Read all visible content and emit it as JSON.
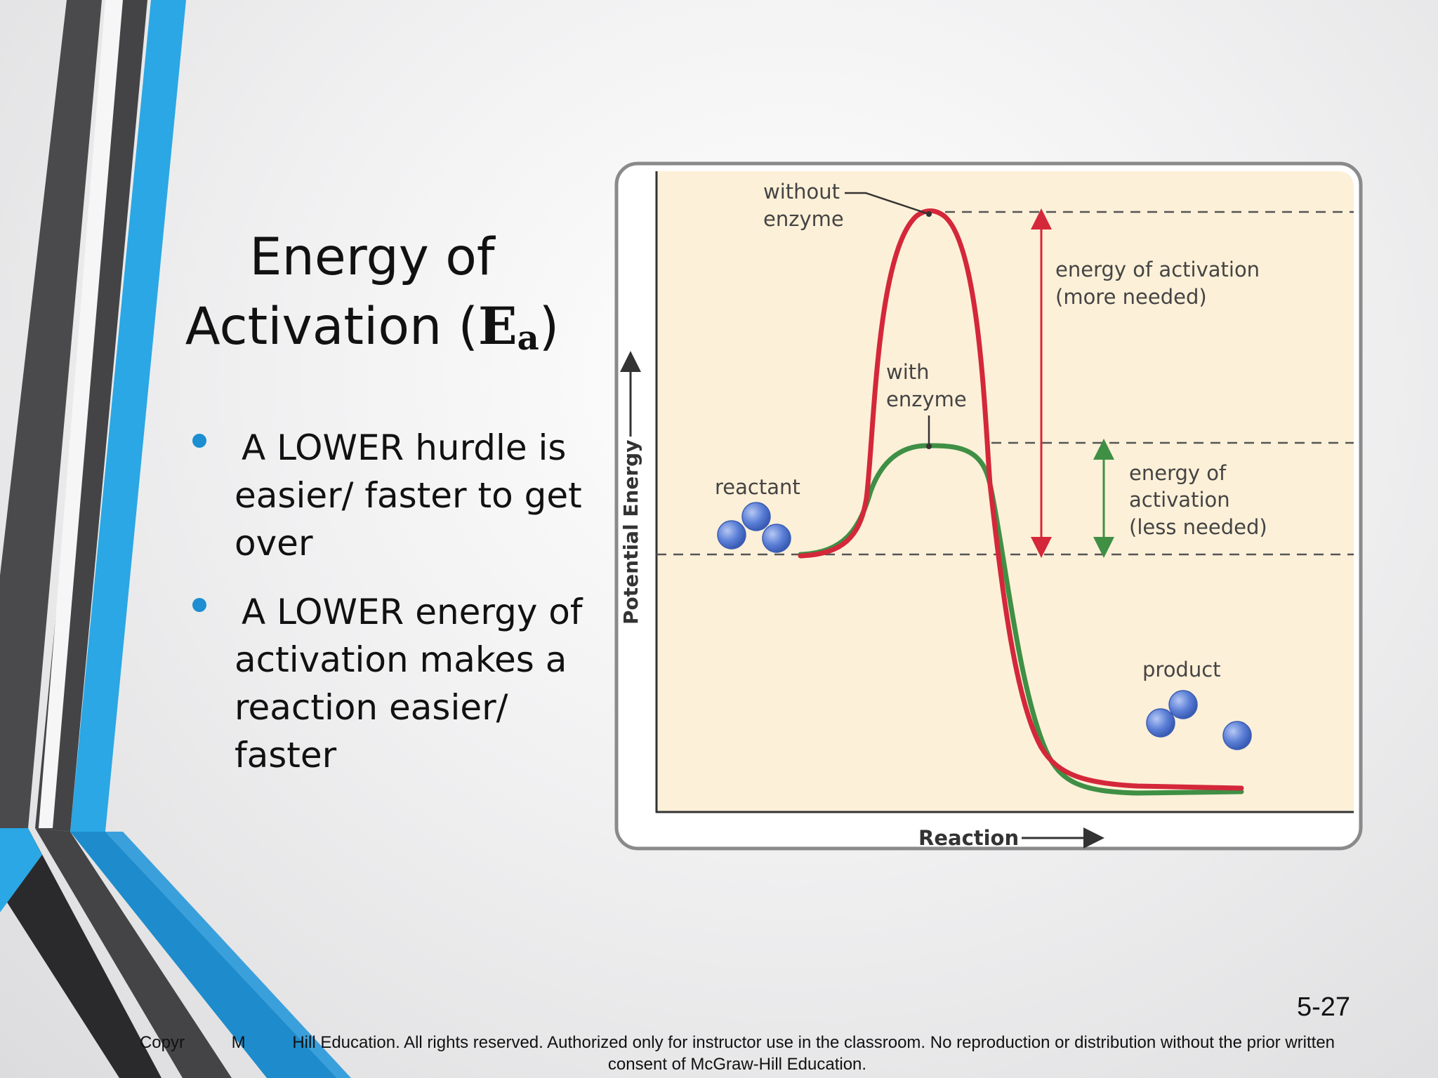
{
  "title": {
    "line1": "Energy of",
    "line2_prefix": "Activation (",
    "ea_symbol": "E",
    "ea_subscript": "a",
    "line2_suffix": ")"
  },
  "bullets": [
    {
      "text": "A LOWER hurdle is easier/ faster to get over"
    },
    {
      "text": "A LOWER energy of activation makes a reaction easier/ faster"
    }
  ],
  "diagram": {
    "y_axis_label": "Potential Energy",
    "x_axis_label": "Reaction",
    "labels": {
      "without_enzyme_1": "without",
      "without_enzyme_2": "enzyme",
      "with_enzyme_1": "with",
      "with_enzyme_2": "enzyme",
      "reactant": "reactant",
      "product": "product",
      "ea_more_1": "energy of activation",
      "ea_more_2": "(more needed)",
      "ea_less_1": "energy of",
      "ea_less_2": "activation",
      "ea_less_3": "(less needed)"
    },
    "colors": {
      "without_enzyme": "#d4273a",
      "with_enzyme": "#3f8f45",
      "molecule": "#5b7fd6",
      "panel_background": "#fdf0d8"
    }
  },
  "slide_number": "5-27",
  "copyright": {
    "line1": "Copyr          M          Hill Education. All rights reserved. Authorized only for instructor use in the classroom. No reproduction or distribution without the prior written",
    "line2": "consent of McGraw-Hill Education."
  }
}
